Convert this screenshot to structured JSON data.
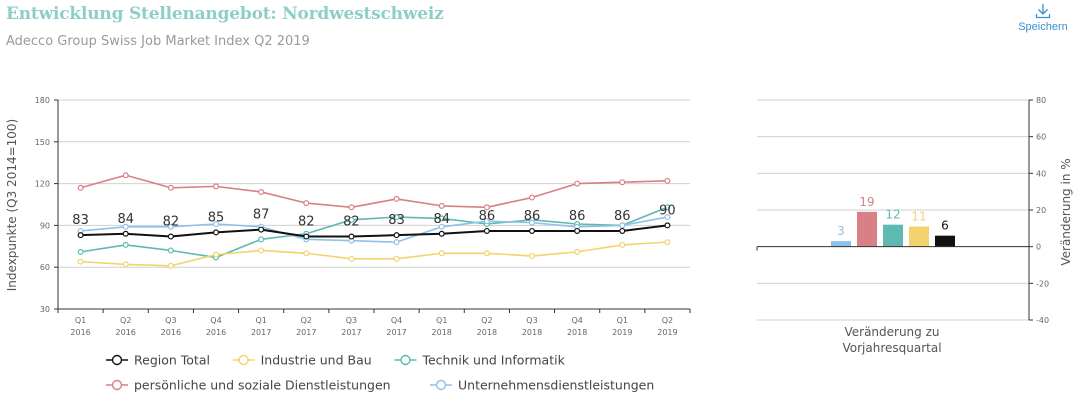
{
  "header": {
    "title": "Entwicklung Stellenangebot: Nordwestschweiz",
    "subtitle": "Adecco Group Swiss Job Market Index Q2 2019",
    "save_label": "Speichern",
    "save_icon": "download-icon"
  },
  "colors": {
    "title": "#8ccfc9",
    "region_total": "#111111",
    "industrie": "#f3d36e",
    "technik": "#5ebab1",
    "persoenlich": "#d97f86",
    "unternehmen": "#8fc0ea",
    "grid": "#d0d0d0",
    "axis": "#333333",
    "save": "#3a8fd0"
  },
  "chart_data": [
    {
      "type": "line",
      "title": "Entwicklung Stellenangebot: Nordwestschweiz",
      "xlabel": "",
      "ylabel": "Indexpunkte (Q3 2014=100)",
      "ylim": [
        30,
        180
      ],
      "yticks": [
        30,
        60,
        90,
        120,
        150,
        180
      ],
      "grid": true,
      "legend_position": "bottom",
      "categories": [
        [
          "Q1",
          "2016"
        ],
        [
          "Q2",
          "2016"
        ],
        [
          "Q3",
          "2016"
        ],
        [
          "Q4",
          "2016"
        ],
        [
          "Q1",
          "2017"
        ],
        [
          "Q2",
          "2017"
        ],
        [
          "Q3",
          "2017"
        ],
        [
          "Q4",
          "2017"
        ],
        [
          "Q1",
          "2018"
        ],
        [
          "Q2",
          "2018"
        ],
        [
          "Q3",
          "2018"
        ],
        [
          "Q4",
          "2018"
        ],
        [
          "Q1",
          "2019"
        ],
        [
          "Q2",
          "2019"
        ]
      ],
      "series": [
        {
          "key": "persoenlich",
          "name": "persönliche und soziale Dienstleistungen",
          "color": "#d97f86",
          "values": [
            117,
            126,
            117,
            118,
            114,
            106,
            103,
            109,
            104,
            103,
            110,
            120,
            121,
            122
          ]
        },
        {
          "key": "technik",
          "name": "Technik und Informatik",
          "color": "#5ebab1",
          "values": [
            71,
            76,
            72,
            67,
            80,
            84,
            94,
            96,
            95,
            91,
            94,
            91,
            90,
            103
          ]
        },
        {
          "key": "industrie",
          "name": "Industrie und Bau",
          "color": "#f3d36e",
          "values": [
            64,
            62,
            61,
            69,
            72,
            70,
            66,
            66,
            70,
            70,
            68,
            71,
            76,
            78
          ]
        },
        {
          "key": "unternehmen",
          "name": "Unternehmensdienstleistungen",
          "color": "#8fc0ea",
          "values": [
            86,
            89,
            89,
            91,
            89,
            80,
            79,
            78,
            89,
            93,
            92,
            89,
            90,
            96
          ]
        },
        {
          "key": "region_total",
          "name": "Region Total",
          "color": "#111111",
          "values": [
            83,
            84,
            82,
            85,
            87,
            82,
            82,
            83,
            84,
            86,
            86,
            86,
            86,
            90
          ],
          "data_labels": [
            "83",
            "84",
            "82",
            "85",
            "87",
            "82",
            "82",
            "83",
            "84",
            "86",
            "86",
            "86",
            "86",
            "90"
          ]
        }
      ],
      "legend": [
        {
          "name": "Region Total",
          "color": "#111111"
        },
        {
          "name": "Industrie und Bau",
          "color": "#f3d36e"
        },
        {
          "name": "Technik und Informatik",
          "color": "#5ebab1"
        },
        {
          "name": "persönliche und soziale Dienstleistungen",
          "color": "#d97f86"
        },
        {
          "name": "Unternehmensdienstleistungen",
          "color": "#8fc0ea"
        }
      ]
    },
    {
      "type": "bar",
      "xlabel": "Veränderung zu Vorjahresquartal",
      "xlabel_lines": [
        "Veränderung zu",
        "Vorjahresquartal"
      ],
      "ylabel": "Veränderung in %",
      "ylim": [
        -40,
        80
      ],
      "yticks": [
        -40,
        -20,
        0,
        20,
        40,
        60,
        80
      ],
      "grid": true,
      "categories": [
        "Unternehmensdienstleistungen",
        "persönliche und soziale Dienstleistungen",
        "Technik und Informatik",
        "Industrie und Bau",
        "Region Total"
      ],
      "values": [
        3,
        19,
        12,
        11,
        6
      ],
      "data_labels": [
        "3",
        "19",
        "12",
        "11",
        "6"
      ],
      "colors": [
        "#8fc0ea",
        "#d97f86",
        "#5ebab1",
        "#f3d36e",
        "#111111"
      ]
    }
  ]
}
